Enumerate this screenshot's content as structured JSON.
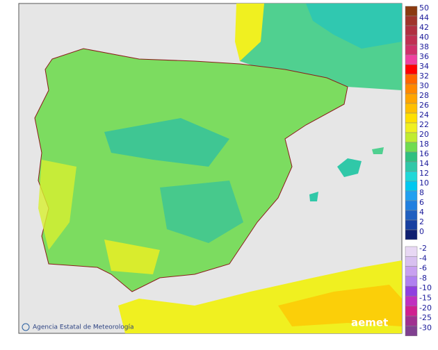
{
  "attribution": "Agencia Estatal de Meteorología",
  "logo": "aemet",
  "legend": {
    "items": [
      {
        "value": 50,
        "color": "#8b3a0f"
      },
      {
        "value": 44,
        "color": "#a0342a"
      },
      {
        "value": 42,
        "color": "#b03040"
      },
      {
        "value": 40,
        "color": "#c03052"
      },
      {
        "value": 38,
        "color": "#d0306a"
      },
      {
        "value": 36,
        "color": "#f040a0"
      },
      {
        "value": 34,
        "color": "#ff0000"
      },
      {
        "value": 32,
        "color": "#ff6600"
      },
      {
        "value": 30,
        "color": "#ff8800"
      },
      {
        "value": 28,
        "color": "#ffa500"
      },
      {
        "value": 26,
        "color": "#ffc000"
      },
      {
        "value": 24,
        "color": "#ffe000"
      },
      {
        "value": 22,
        "color": "#f0f020"
      },
      {
        "value": 20,
        "color": "#c0ec30"
      },
      {
        "value": 18,
        "color": "#70dc50"
      },
      {
        "value": 16,
        "color": "#30c080"
      },
      {
        "value": 14,
        "color": "#30c8a8"
      },
      {
        "value": 12,
        "color": "#20d8d8"
      },
      {
        "value": 10,
        "color": "#00c8f0"
      },
      {
        "value": 8,
        "color": "#20a0f0"
      },
      {
        "value": 6,
        "color": "#2080e0"
      },
      {
        "value": 4,
        "color": "#2060c0"
      },
      {
        "value": 2,
        "color": "#1840a0"
      },
      {
        "value": 0,
        "color": "#102070"
      },
      {
        "value": -2,
        "color": "#e8d8f4"
      },
      {
        "value": -4,
        "color": "#d8c0f0"
      },
      {
        "value": -6,
        "color": "#c8a0f0"
      },
      {
        "value": -8,
        "color": "#b080f0"
      },
      {
        "value": -10,
        "color": "#9040e0"
      },
      {
        "value": -15,
        "color": "#c030c0"
      },
      {
        "value": -20,
        "color": "#d02090"
      },
      {
        "value": -25,
        "color": "#a03090"
      },
      {
        "value": -30,
        "color": "#804090"
      }
    ]
  }
}
